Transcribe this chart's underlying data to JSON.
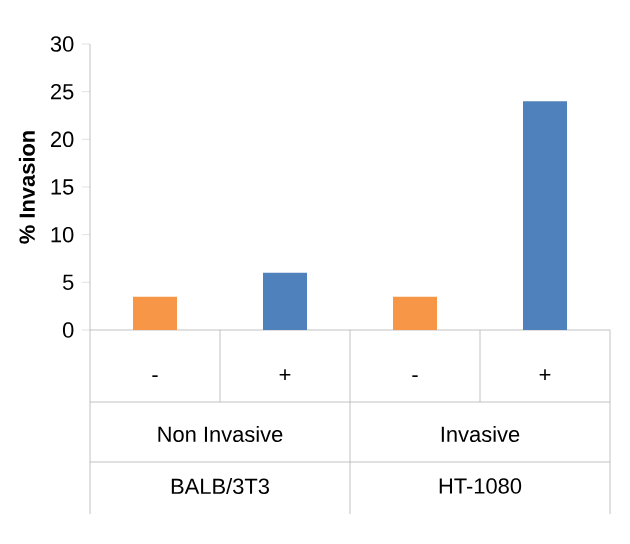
{
  "chart_data": {
    "type": "bar",
    "ylabel": "% Invasion",
    "categories": [
      "-",
      "+",
      "-",
      "+"
    ],
    "values": [
      3.5,
      6,
      3.5,
      24
    ],
    "colors": [
      "#f79646",
      "#4f81bd",
      "#f79646",
      "#4f81bd"
    ],
    "ylim": [
      0,
      30
    ],
    "yticks": [
      0,
      5,
      10,
      15,
      20,
      25,
      30
    ],
    "annotations": [
      "Non Invasive",
      "Invasive",
      "BALB/3T3",
      "HT-1080"
    ]
  }
}
